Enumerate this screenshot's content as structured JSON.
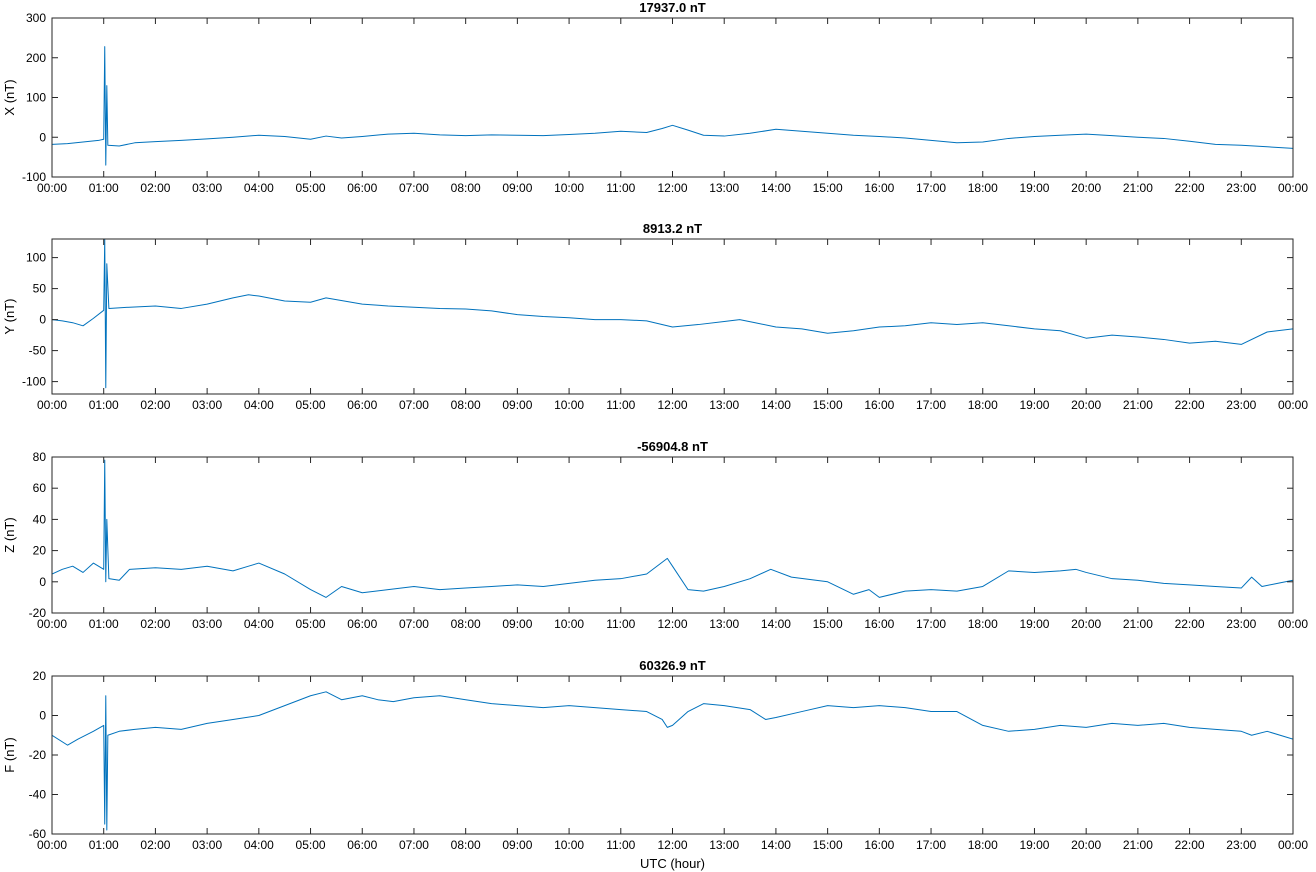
{
  "chart_data": [
    {
      "type": "line",
      "title": "17937.0 nT",
      "ylabel": "X (nT)",
      "xlabel": "",
      "ylim": [
        -100,
        300
      ],
      "yticks": [
        "300",
        "200",
        "100",
        "0",
        "-100"
      ],
      "ytick_values": [
        300,
        200,
        100,
        0,
        -100
      ],
      "xticks": [
        "00:00",
        "01:00",
        "02:00",
        "03:00",
        "04:00",
        "05:00",
        "06:00",
        "07:00",
        "08:00",
        "09:00",
        "10:00",
        "11:00",
        "12:00",
        "13:00",
        "14:00",
        "15:00",
        "16:00",
        "17:00",
        "18:00",
        "19:00",
        "20:00",
        "21:00",
        "22:00",
        "23:00",
        "00:00"
      ],
      "xlim_hours": [
        0,
        24
      ],
      "series": [
        {
          "name": "X",
          "x": [
            0,
            0.3,
            0.6,
            0.9,
            1.0,
            1.02,
            1.04,
            1.06,
            1.08,
            1.3,
            1.6,
            2,
            2.5,
            3,
            3.5,
            4,
            4.5,
            5,
            5.3,
            5.6,
            6,
            6.5,
            7,
            7.5,
            8,
            8.5,
            9,
            9.5,
            10,
            10.5,
            11,
            11.5,
            11.8,
            12,
            12.3,
            12.6,
            13,
            13.5,
            14,
            14.5,
            15,
            15.5,
            16,
            16.5,
            17,
            17.5,
            18,
            18.5,
            19,
            19.5,
            20,
            20.5,
            21,
            21.5,
            22,
            22.5,
            23,
            23.5,
            24
          ],
          "values": [
            -18,
            -16,
            -12,
            -8,
            -5,
            228,
            -70,
            130,
            -20,
            -22,
            -14,
            -11,
            -8,
            -4,
            0,
            5,
            2,
            -5,
            3,
            -2,
            2,
            8,
            10,
            6,
            4,
            6,
            5,
            4,
            7,
            10,
            15,
            12,
            22,
            30,
            18,
            5,
            3,
            10,
            20,
            15,
            10,
            5,
            2,
            -2,
            -8,
            -14,
            -12,
            -3,
            2,
            5,
            8,
            4,
            0,
            -3,
            -10,
            -18,
            -20,
            -24,
            -28
          ]
        }
      ]
    },
    {
      "type": "line",
      "title": "8913.2 nT",
      "ylabel": "Y (nT)",
      "xlabel": "",
      "ylim": [
        -120,
        130
      ],
      "yticks": [
        "100",
        "50",
        "0",
        "-50",
        "-100"
      ],
      "ytick_values": [
        100,
        50,
        0,
        -50,
        -100
      ],
      "xticks": [
        "00:00",
        "01:00",
        "02:00",
        "03:00",
        "04:00",
        "05:00",
        "06:00",
        "07:00",
        "08:00",
        "09:00",
        "10:00",
        "11:00",
        "12:00",
        "13:00",
        "14:00",
        "15:00",
        "16:00",
        "17:00",
        "18:00",
        "19:00",
        "20:00",
        "21:00",
        "22:00",
        "23:00",
        "00:00"
      ],
      "xlim_hours": [
        0,
        24
      ],
      "series": [
        {
          "name": "Y",
          "x": [
            0,
            0.2,
            0.4,
            0.6,
            0.8,
            1.0,
            1.02,
            1.04,
            1.06,
            1.1,
            1.5,
            2,
            2.5,
            3,
            3.5,
            3.8,
            4,
            4.5,
            5,
            5.3,
            6,
            6.5,
            7,
            7.5,
            8,
            8.5,
            9,
            9.5,
            10,
            10.5,
            11,
            11.5,
            12,
            12.5,
            13,
            13.3,
            13.6,
            14,
            14.5,
            15,
            15.5,
            16,
            16.5,
            17,
            17.5,
            18,
            18.5,
            19,
            19.5,
            20,
            20.5,
            21,
            21.5,
            22,
            22.5,
            23,
            23.5,
            24
          ],
          "values": [
            0,
            -2,
            -5,
            -10,
            2,
            15,
            130,
            -110,
            90,
            18,
            20,
            22,
            18,
            25,
            35,
            40,
            38,
            30,
            28,
            35,
            25,
            22,
            20,
            18,
            17,
            14,
            8,
            5,
            3,
            0,
            0,
            -2,
            -12,
            -8,
            -3,
            0,
            -5,
            -12,
            -15,
            -22,
            -18,
            -12,
            -10,
            -5,
            -8,
            -5,
            -10,
            -15,
            -18,
            -30,
            -25,
            -28,
            -32,
            -38,
            -35,
            -40,
            -20,
            -15
          ]
        }
      ]
    },
    {
      "type": "line",
      "title": "-56904.8 nT",
      "ylabel": "Z (nT)",
      "xlabel": "",
      "ylim": [
        -20,
        80
      ],
      "yticks": [
        "80",
        "60",
        "40",
        "20",
        "0",
        "-20"
      ],
      "ytick_values": [
        80,
        60,
        40,
        20,
        0,
        -20
      ],
      "xticks": [
        "00:00",
        "01:00",
        "02:00",
        "03:00",
        "04:00",
        "05:00",
        "06:00",
        "07:00",
        "08:00",
        "09:00",
        "10:00",
        "11:00",
        "12:00",
        "13:00",
        "14:00",
        "15:00",
        "16:00",
        "17:00",
        "18:00",
        "19:00",
        "20:00",
        "21:00",
        "22:00",
        "23:00",
        "00:00"
      ],
      "xlim_hours": [
        0,
        24
      ],
      "series": [
        {
          "name": "Z",
          "x": [
            0,
            0.2,
            0.4,
            0.6,
            0.8,
            1.0,
            1.02,
            1.04,
            1.06,
            1.1,
            1.3,
            1.5,
            2,
            2.5,
            3,
            3.5,
            3.8,
            4,
            4.5,
            5,
            5.3,
            5.6,
            6,
            6.5,
            7,
            7.5,
            8,
            8.5,
            9,
            9.5,
            10,
            10.5,
            11,
            11.5,
            11.9,
            12,
            12.3,
            12.6,
            13,
            13.5,
            13.9,
            14.3,
            15,
            15.5,
            15.8,
            16,
            16.5,
            17,
            17.5,
            18,
            18.5,
            19,
            19.5,
            19.8,
            20,
            20.5,
            21,
            21.5,
            22,
            22.5,
            23,
            23.2,
            23.4,
            23.7,
            24
          ],
          "values": [
            5,
            8,
            10,
            6,
            12,
            8,
            78,
            0,
            40,
            2,
            1,
            8,
            9,
            8,
            10,
            7,
            10,
            12,
            5,
            -5,
            -10,
            -3,
            -7,
            -5,
            -3,
            -5,
            -4,
            -3,
            -2,
            -3,
            -1,
            1,
            2,
            5,
            15,
            10,
            -5,
            -6,
            -3,
            2,
            8,
            3,
            0,
            -8,
            -5,
            -10,
            -6,
            -5,
            -6,
            -3,
            7,
            6,
            7,
            8,
            6,
            2,
            1,
            -1,
            -2,
            -3,
            -4,
            3,
            -3,
            -1,
            1
          ]
        }
      ]
    },
    {
      "type": "line",
      "title": "60326.9 nT",
      "ylabel": "F (nT)",
      "xlabel": "UTC (hour)",
      "ylim": [
        -60,
        20
      ],
      "yticks": [
        "20",
        "0",
        "-20",
        "-40",
        "-60"
      ],
      "ytick_values": [
        20,
        0,
        -20,
        -40,
        -60
      ],
      "xticks": [
        "00:00",
        "01:00",
        "02:00",
        "03:00",
        "04:00",
        "05:00",
        "06:00",
        "07:00",
        "08:00",
        "09:00",
        "10:00",
        "11:00",
        "12:00",
        "13:00",
        "14:00",
        "15:00",
        "16:00",
        "17:00",
        "18:00",
        "19:00",
        "20:00",
        "21:00",
        "22:00",
        "23:00",
        "00:00"
      ],
      "xlim_hours": [
        0,
        24
      ],
      "series": [
        {
          "name": "F",
          "x": [
            0,
            0.3,
            0.5,
            0.8,
            1.0,
            1.02,
            1.04,
            1.06,
            1.08,
            1.3,
            1.6,
            2,
            2.5,
            3,
            3.5,
            4,
            4.5,
            5,
            5.3,
            5.6,
            6,
            6.3,
            6.6,
            7,
            7.5,
            8,
            8.5,
            9,
            9.5,
            10,
            10.5,
            11,
            11.5,
            11.8,
            11.9,
            12,
            12.3,
            12.6,
            13,
            13.5,
            13.8,
            14,
            14.5,
            15,
            15.5,
            16,
            16.5,
            17,
            17.5,
            18,
            18.5,
            19,
            19.5,
            20,
            20.5,
            21,
            21.5,
            22,
            22.5,
            23,
            23.2,
            23.5,
            24
          ],
          "values": [
            -10,
            -15,
            -12,
            -8,
            -5,
            -55,
            10,
            -58,
            -10,
            -8,
            -7,
            -6,
            -7,
            -4,
            -2,
            0,
            5,
            10,
            12,
            8,
            10,
            8,
            7,
            9,
            10,
            8,
            6,
            5,
            4,
            5,
            4,
            3,
            2,
            -2,
            -6,
            -5,
            2,
            6,
            5,
            3,
            -2,
            -1,
            2,
            5,
            4,
            5,
            4,
            2,
            2,
            -5,
            -8,
            -7,
            -5,
            -6,
            -4,
            -5,
            -4,
            -6,
            -7,
            -8,
            -10,
            -8,
            -12
          ]
        }
      ]
    }
  ],
  "colors": {
    "line": "#0072bd",
    "axis": "#262626"
  }
}
